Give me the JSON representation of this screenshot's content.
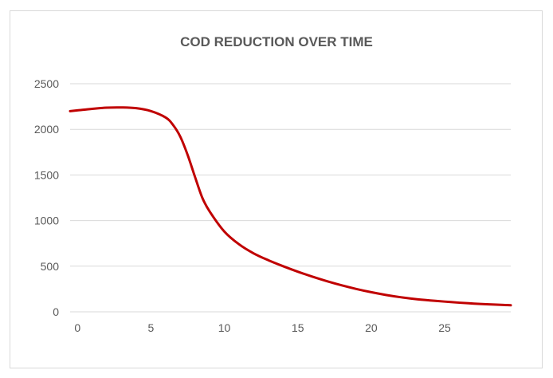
{
  "chart_data": {
    "type": "line",
    "title": "COD REDUCTION OVER TIME",
    "xlabel": "",
    "ylabel": "",
    "xlim": [
      -0.5,
      29.5
    ],
    "ylim": [
      0,
      2500
    ],
    "x_ticks": [
      0,
      5,
      10,
      15,
      20,
      25
    ],
    "y_ticks": [
      0,
      500,
      1000,
      1500,
      2000,
      2500
    ],
    "grid": "horizontal",
    "legend": "none",
    "series": [
      {
        "color": "#c00000",
        "x": [
          -0.5,
          0,
          1,
          2,
          3,
          4,
          5,
          6,
          6.5,
          7,
          7.5,
          8,
          8.5,
          9,
          10,
          11,
          12,
          13,
          14,
          15,
          16,
          17,
          18,
          19,
          20,
          21,
          22,
          23,
          24,
          25,
          26,
          27,
          28,
          29,
          29.5
        ],
        "values": [
          2200,
          2208,
          2225,
          2238,
          2240,
          2232,
          2200,
          2130,
          2050,
          1920,
          1720,
          1480,
          1250,
          1100,
          880,
          740,
          640,
          565,
          500,
          440,
          385,
          335,
          290,
          250,
          215,
          185,
          160,
          140,
          125,
          112,
          100,
          90,
          82,
          75,
          72
        ]
      }
    ]
  }
}
